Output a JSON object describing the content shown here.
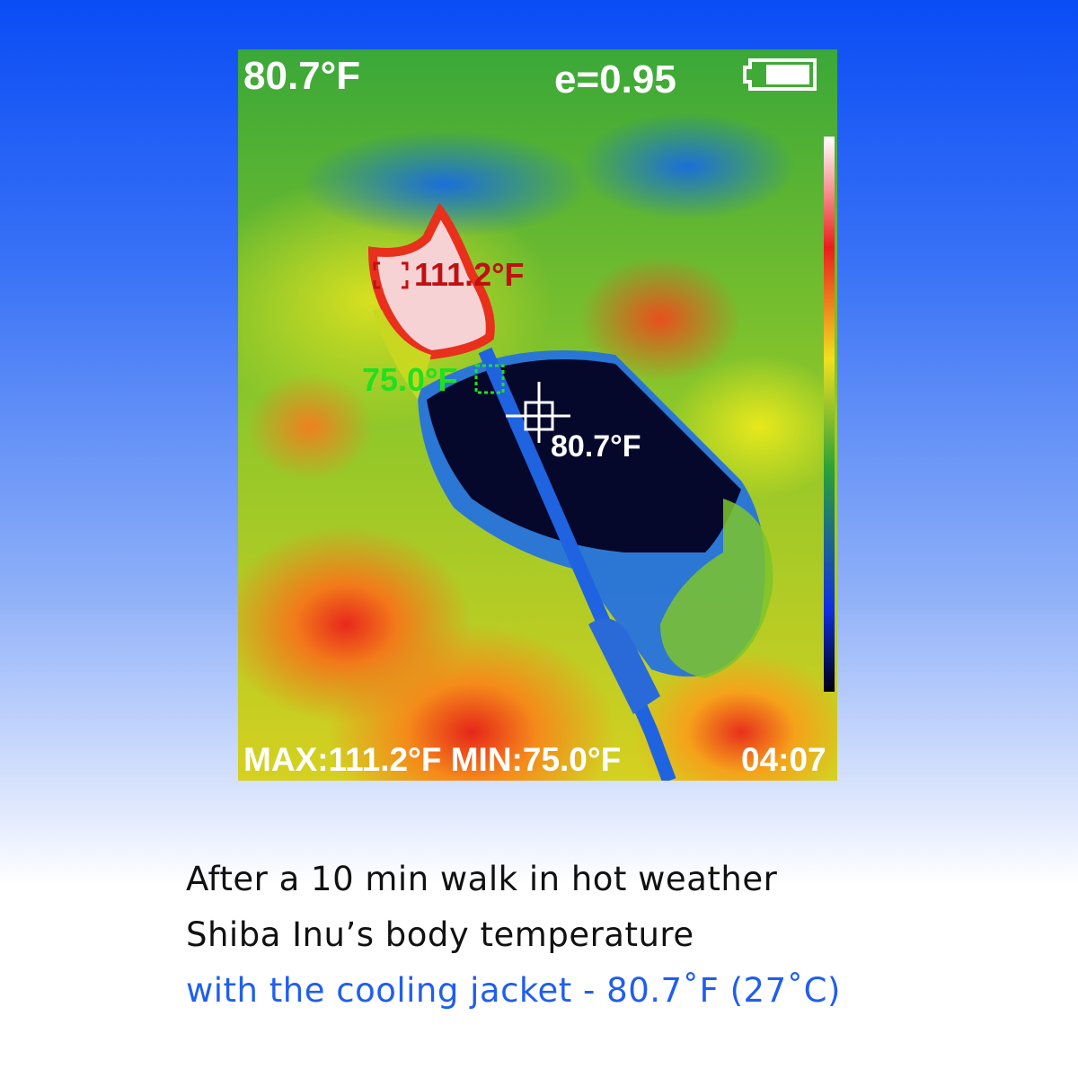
{
  "thermal_display": {
    "center_temp": "80.7°F",
    "emissivity": "e=0.95",
    "battery_icon": "battery-full-icon",
    "max_marker": "111.2°F",
    "min_marker": "75.0°F",
    "crosshair_temp": "80.7°F",
    "max_min_readout": "MAX:111.2°F MIN:75.0°F",
    "time": "04:07",
    "palette_colors": [
      "#ffffff",
      "#e8201c",
      "#f0e020",
      "#2aa038",
      "#1030e0",
      "#000010"
    ]
  },
  "caption": {
    "line1": "After a 10 min walk in hot weather",
    "line2": "Shiba Inu’s body temperature",
    "line3": "with the cooling jacket - 80.7˚F (27˚C)",
    "highlight_color": "#1f5ef0"
  }
}
